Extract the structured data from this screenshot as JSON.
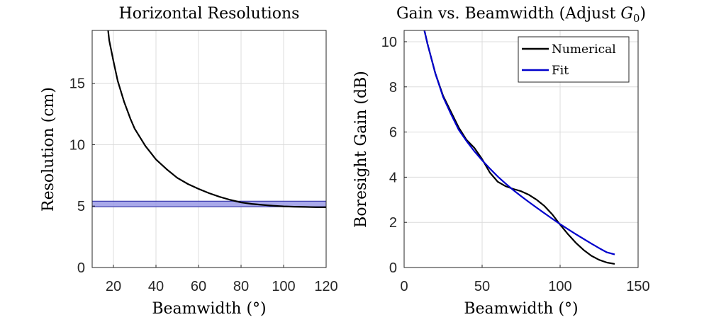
{
  "chart_data": [
    {
      "type": "line",
      "title": "Horizontal Resolutions",
      "xlabel": "Beamwidth (°)",
      "ylabel": "Resolution (cm)",
      "xlim": [
        10,
        120
      ],
      "ylim": [
        0,
        19.3
      ],
      "xticks": [
        20,
        40,
        60,
        80,
        100,
        120
      ],
      "yticks": [
        0,
        5,
        10,
        15
      ],
      "grid": true,
      "series": [
        {
          "color": "#000000",
          "x": [
            17.5,
            18,
            20,
            22,
            25,
            28,
            30,
            35,
            40,
            45,
            50,
            55,
            60,
            65,
            70,
            75,
            80,
            85,
            90,
            95,
            100,
            105,
            110,
            115,
            120
          ],
          "y": [
            19.3,
            18.5,
            16.8,
            15.2,
            13.5,
            12.1,
            11.3,
            9.9,
            8.8,
            8.0,
            7.3,
            6.8,
            6.4,
            6.05,
            5.75,
            5.5,
            5.3,
            5.18,
            5.1,
            5.03,
            4.98,
            4.95,
            4.93,
            4.91,
            4.9
          ]
        }
      ],
      "band": {
        "ymin": 4.95,
        "ymax": 5.4,
        "color": "#9a9ae6",
        "edge_color": "#1f1f9e"
      }
    },
    {
      "type": "line",
      "title": "Gain vs. Beamwidth (Adjust G0)",
      "title_main": "Gain vs. Beamwidth (Adjust ",
      "title_sym": "G",
      "title_sub": "0",
      "title_close": ")",
      "xlabel": "Beamwidth (°)",
      "ylabel": "Boresight Gain (dB)",
      "xlim": [
        0,
        150
      ],
      "ylim": [
        0,
        10.5
      ],
      "xticks": [
        0,
        50,
        100,
        150
      ],
      "yticks": [
        0,
        2,
        4,
        6,
        8,
        10
      ],
      "grid": true,
      "legend": {
        "position": "top-right",
        "entries": [
          "Numerical",
          "Fit"
        ]
      },
      "series": [
        {
          "name": "Numerical",
          "color": "#000000",
          "x": [
            13,
            15,
            20,
            25,
            30,
            35,
            40,
            45,
            50,
            55,
            60,
            65,
            70,
            75,
            80,
            85,
            90,
            95,
            100,
            105,
            110,
            115,
            120,
            125,
            130,
            135
          ],
          "y": [
            10.5,
            9.9,
            8.6,
            7.6,
            6.9,
            6.2,
            5.65,
            5.3,
            4.8,
            4.2,
            3.8,
            3.6,
            3.48,
            3.38,
            3.22,
            3.0,
            2.72,
            2.35,
            1.9,
            1.48,
            1.1,
            0.78,
            0.52,
            0.34,
            0.22,
            0.16
          ]
        },
        {
          "name": "Fit",
          "color": "#0000cc",
          "x": [
            13,
            15,
            20,
            25,
            30,
            35,
            40,
            45,
            50,
            55,
            60,
            65,
            70,
            75,
            80,
            85,
            90,
            95,
            100,
            105,
            110,
            115,
            120,
            125,
            130,
            135
          ],
          "y": [
            10.5,
            9.9,
            8.6,
            7.55,
            6.8,
            6.1,
            5.6,
            5.15,
            4.75,
            4.38,
            4.03,
            3.72,
            3.43,
            3.16,
            2.9,
            2.65,
            2.4,
            2.16,
            1.92,
            1.7,
            1.48,
            1.27,
            1.06,
            0.86,
            0.67,
            0.58
          ]
        }
      ]
    }
  ]
}
